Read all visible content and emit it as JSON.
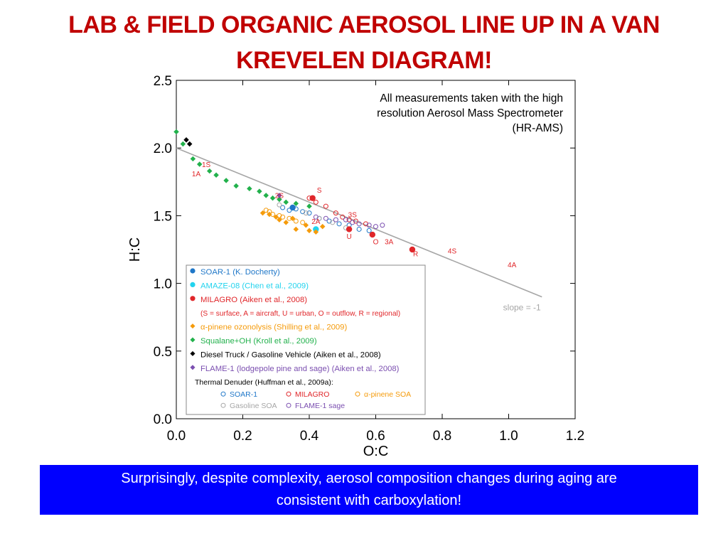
{
  "slide": {
    "title_line1": "LAB & FIELD ORGANIC AEROSOL LINE UP IN A VAN",
    "title_line2": "KREVELEN DIAGRAM!",
    "banner_line1": "Surprisingly, despite complexity, aerosol composition changes during aging  are",
    "banner_line2": "consistent with carboxylation!"
  },
  "colors": {
    "title": "#c00000",
    "banner_bg": "#0000ff",
    "soar": "#1f77c8",
    "amaze": "#22d3ee",
    "milagro": "#e0262a",
    "pinene": "#f59b0b",
    "squalane": "#22b14c",
    "diesel": "#000000",
    "flame": "#7b4fb0",
    "slope_line": "#a6a6a6"
  },
  "chart_data": {
    "type": "scatter",
    "xlabel": "O:C",
    "ylabel": "H:C",
    "xlim": [
      0,
      1.2
    ],
    "ylim": [
      0,
      2.5
    ],
    "x_ticks": [
      "0.0",
      "0.2",
      "0.4",
      "0.6",
      "0.8",
      "1.0",
      "1.2"
    ],
    "y_ticks": [
      "0.0",
      "0.5",
      "1.0",
      "1.5",
      "2.0",
      "2.5"
    ],
    "note": "All measurements taken with the high resolution Aerosol Mass Spectrometer (HR-AMS)",
    "note_lines": [
      "All measurements taken with the high",
      "resolution Aerosol Mass Spectrometer",
      "(HR-AMS)"
    ],
    "slope_line": {
      "label": "slope = -1",
      "x": [
        0,
        1.1
      ],
      "y": [
        2.0,
        0.9
      ]
    },
    "series": [
      {
        "name": "SOAR-1 (K. Docherty)",
        "marker": "circle",
        "color_key": "soar",
        "x": [
          0.35
        ],
        "y": [
          1.56
        ]
      },
      {
        "name": "AMAZE-08 (Chen et al., 2009)",
        "marker": "circle",
        "color_key": "amaze",
        "x": [
          0.42
        ],
        "y": [
          1.4
        ]
      },
      {
        "name": "MILAGRO (Aiken et al., 2008)",
        "marker": "circle",
        "color_key": "milagro",
        "x": [
          0.41,
          0.52,
          0.59,
          0.71
        ],
        "y": [
          1.63,
          1.4,
          1.36,
          1.25
        ]
      },
      {
        "name": "α-pinene ozonolysis (Shilling et al., 2009)",
        "marker": "diamond",
        "color_key": "pinene",
        "x": [
          0.26,
          0.28,
          0.3,
          0.31,
          0.33,
          0.35,
          0.36,
          0.39,
          0.4,
          0.42,
          0.44
        ],
        "y": [
          1.52,
          1.51,
          1.49,
          1.47,
          1.45,
          1.48,
          1.4,
          1.43,
          1.39,
          1.38,
          1.42
        ]
      },
      {
        "name": "Squalane+OH (Kroll et al., 2009)",
        "marker": "diamond",
        "color_key": "squalane",
        "x": [
          0.0,
          0.02,
          0.05,
          0.07,
          0.1,
          0.12,
          0.15,
          0.18,
          0.22,
          0.25,
          0.27,
          0.29,
          0.31,
          0.33,
          0.36,
          0.4
        ],
        "y": [
          2.12,
          2.03,
          1.92,
          1.88,
          1.83,
          1.8,
          1.76,
          1.72,
          1.7,
          1.68,
          1.65,
          1.63,
          1.62,
          1.6,
          1.59,
          1.57
        ]
      },
      {
        "name": "Diesel Truck / Gasoline Vehicle (Aiken et al., 2008)",
        "marker": "diamond",
        "color_key": "diesel",
        "x": [
          0.03,
          0.04
        ],
        "y": [
          2.06,
          2.03
        ]
      },
      {
        "name": "FLAME-1 (lodgepole pine and sage) (Aiken et al., 2008)",
        "marker": "diamond",
        "color_key": "flame",
        "x": [
          0.31
        ],
        "y": [
          1.65
        ]
      }
    ],
    "thermal_denuder": [
      {
        "name": "SOAR-1",
        "color_key": "soar",
        "x": [
          0.32,
          0.34,
          0.36,
          0.38,
          0.4,
          0.43,
          0.46,
          0.49,
          0.52,
          0.55,
          0.58
        ],
        "y": [
          1.56,
          1.54,
          1.55,
          1.53,
          1.52,
          1.48,
          1.46,
          1.44,
          1.43,
          1.4,
          1.39
        ]
      },
      {
        "name": "MILAGRO",
        "color_key": "milagro",
        "x": [
          0.4,
          0.42,
          0.45,
          0.48,
          0.5,
          0.52,
          0.54,
          0.57
        ],
        "y": [
          1.63,
          1.6,
          1.57,
          1.52,
          1.49,
          1.47,
          1.46,
          1.44
        ]
      },
      {
        "name": "α-pinene SOA",
        "color_key": "pinene",
        "x": [
          0.27,
          0.28,
          0.29,
          0.31,
          0.32,
          0.34,
          0.36,
          0.38
        ],
        "y": [
          1.54,
          1.53,
          1.51,
          1.5,
          1.49,
          1.48,
          1.46,
          1.45
        ]
      },
      {
        "name": "Gasoline SOA",
        "color_key": "slope_line",
        "x": [
          0.31,
          0.35,
          0.39,
          0.43,
          0.47,
          0.51
        ],
        "y": [
          1.58,
          1.56,
          1.52,
          1.48,
          1.45,
          1.41
        ]
      },
      {
        "name": "FLAME-1 sage",
        "color_key": "flame",
        "x": [
          0.42,
          0.45,
          0.48,
          0.51,
          0.53,
          0.55,
          0.58,
          0.6,
          0.62
        ],
        "y": [
          1.49,
          1.48,
          1.47,
          1.47,
          1.45,
          1.44,
          1.43,
          1.42,
          1.43
        ]
      }
    ],
    "site_labels": [
      {
        "text": "1S",
        "x": 0.09,
        "y": 1.86
      },
      {
        "text": "1A",
        "x": 0.06,
        "y": 1.79
      },
      {
        "text": "2S",
        "x": 0.31,
        "y": 1.63
      },
      {
        "text": "S",
        "x": 0.43,
        "y": 1.67
      },
      {
        "text": "2A",
        "x": 0.42,
        "y": 1.44
      },
      {
        "text": "3S",
        "x": 0.53,
        "y": 1.49
      },
      {
        "text": "U",
        "x": 0.52,
        "y": 1.33
      },
      {
        "text": "O",
        "x": 0.6,
        "y": 1.29
      },
      {
        "text": "3A",
        "x": 0.64,
        "y": 1.29
      },
      {
        "text": "R",
        "x": 0.72,
        "y": 1.2
      },
      {
        "text": "4S",
        "x": 0.83,
        "y": 1.22
      },
      {
        "text": "4A",
        "x": 1.01,
        "y": 1.12
      }
    ],
    "legend_position": "lower-left",
    "legend": {
      "entries": [
        {
          "label": "SOAR-1 (K. Docherty)",
          "marker": "circle",
          "color_key": "soar"
        },
        {
          "label": "AMAZE-08 (Chen et al., 2009)",
          "marker": "circle",
          "color_key": "amaze"
        },
        {
          "label": "MILAGRO (Aiken et al., 2008)",
          "marker": "circle",
          "color_key": "milagro"
        },
        {
          "label": "(S = surface, A = aircraft, U = urban, O = outflow, R = regional)",
          "marker": "none",
          "color_key": "milagro"
        },
        {
          "label": "α-pinene ozonolysis (Shilling et al., 2009)",
          "marker": "diamond",
          "color_key": "pinene"
        },
        {
          "label": "Squalane+OH (Kroll et al., 2009)",
          "marker": "diamond",
          "color_key": "squalane"
        },
        {
          "label": "Diesel Truck / Gasoline Vehicle (Aiken et al., 2008)",
          "marker": "diamond",
          "color_key": "diesel"
        },
        {
          "label": "FLAME-1 (lodgepole pine and sage) (Aiken et al., 2008)",
          "marker": "diamond",
          "color_key": "flame"
        }
      ],
      "td_title": "Thermal Denuder (Huffman et al., 2009a):",
      "td_entries": [
        {
          "label": "SOAR-1",
          "color_key": "soar"
        },
        {
          "label": "MILAGRO",
          "color_key": "milagro"
        },
        {
          "label": "α-pinene SOA",
          "color_key": "pinene"
        },
        {
          "label": "Gasoline SOA",
          "color_key": "slope_line"
        },
        {
          "label": "FLAME-1 sage",
          "color_key": "flame"
        }
      ]
    }
  }
}
